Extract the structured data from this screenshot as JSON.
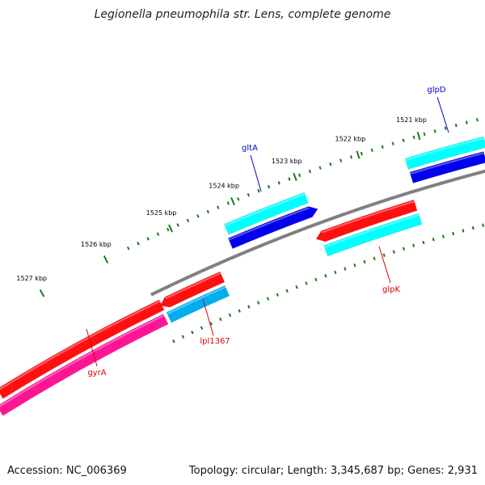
{
  "title": "Legionella pneumophila str. Lens, complete genome",
  "footer": {
    "accession": "Accession: NC_006369",
    "topology": "Topology: circular; Length: 3,345,687 bp; Genes: 2,931"
  },
  "ticks": [
    "1527 kbp",
    "1526 kbp",
    "1525 kbp",
    "1524 kbp",
    "1523 kbp",
    "1522 kbp",
    "1521 kbp"
  ],
  "genes": [
    {
      "name": "gltA",
      "color": "#0000cc"
    },
    {
      "name": "glpD",
      "color": "#0000cc"
    },
    {
      "name": "lpl1367",
      "color": "#dd0000"
    },
    {
      "name": "gyrA",
      "color": "#dd0000"
    },
    {
      "name": "glpK",
      "color": "#dd0000"
    }
  ],
  "colors": {
    "backbone": "#808080",
    "tick": "#1a7a1a",
    "cds_red": "#ff1010",
    "cds_magenta": "#ff1493",
    "cds_cyan": "#00ffff",
    "cds_blue": "#0000ee",
    "cds_skyblue": "#00aeef"
  }
}
